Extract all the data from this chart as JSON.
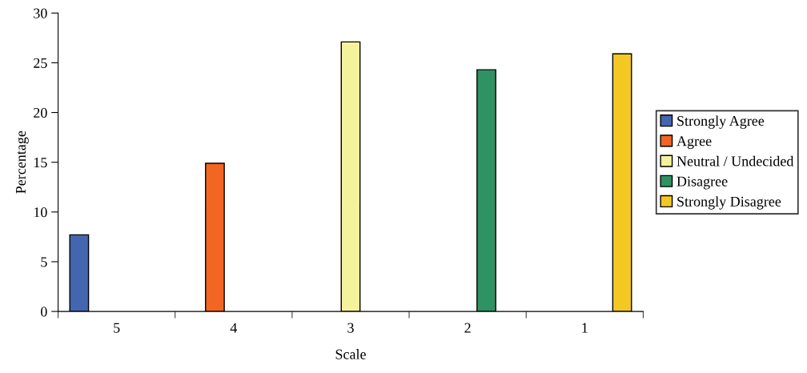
{
  "chart_data": {
    "type": "bar",
    "xlabel": "Scale",
    "ylabel": "Percentage",
    "categories": [
      "5",
      "4",
      "3",
      "2",
      "1"
    ],
    "series": [
      {
        "name": "Strongly Agree",
        "color": "#4466b0",
        "values": [
          7.7,
          null,
          null,
          null,
          null
        ]
      },
      {
        "name": "Agree",
        "color": "#f26522",
        "values": [
          null,
          14.9,
          null,
          null,
          null
        ]
      },
      {
        "name": "Neutral / Undecided",
        "color": "#f5f29c",
        "values": [
          null,
          null,
          27.1,
          null,
          null
        ]
      },
      {
        "name": "Disagree",
        "color": "#2e9262",
        "values": [
          null,
          null,
          null,
          24.3,
          null
        ]
      },
      {
        "name": "Strongly Disagree",
        "color": "#f4c823",
        "values": [
          null,
          null,
          null,
          null,
          25.9
        ]
      }
    ],
    "ylim": [
      0,
      30
    ],
    "yticks": [
      0,
      5,
      10,
      15,
      20,
      25,
      30
    ],
    "grid": false,
    "legend": "right"
  }
}
